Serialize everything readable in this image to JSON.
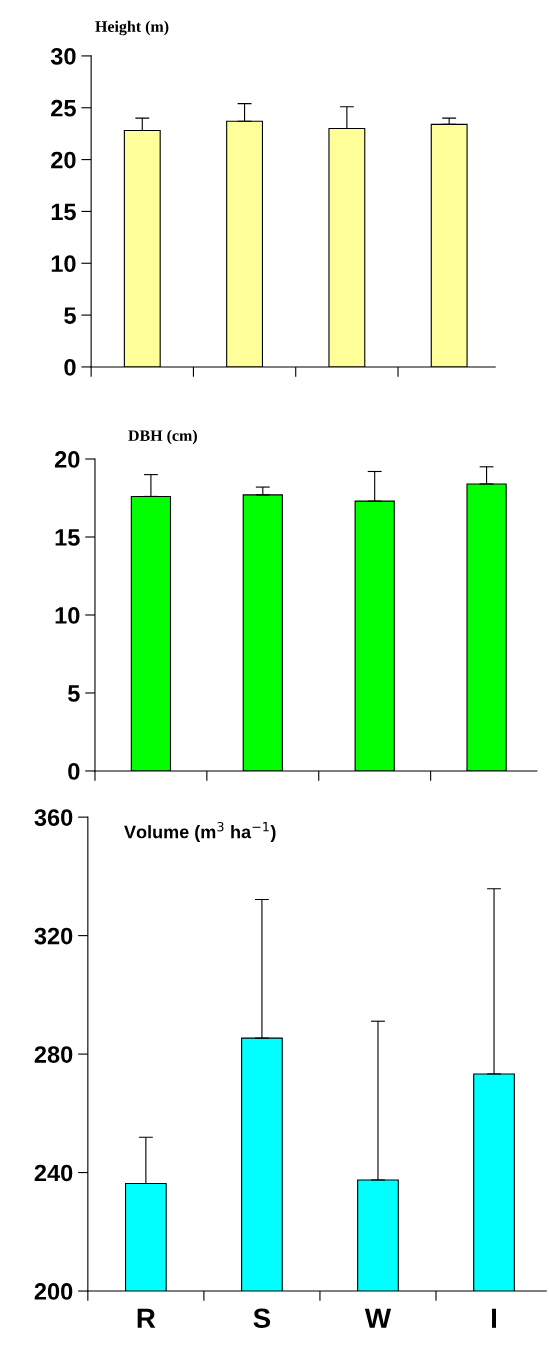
{
  "chart_data": [
    {
      "type": "bar",
      "title": "Height (m)",
      "categories": [
        null,
        null,
        null,
        null
      ],
      "values": [
        22.8,
        23.7,
        23.0,
        23.4
      ],
      "errors": [
        [
          22.8,
          24.0
        ],
        [
          23.7,
          25.4
        ],
        [
          23.0,
          25.1
        ],
        [
          23.4,
          24.0
        ]
      ],
      "color": "#ffff99",
      "ylim": [
        0,
        30
      ],
      "yticks": [
        0,
        5,
        10,
        15,
        20,
        25,
        30
      ],
      "tick_labels": "y"
    },
    {
      "type": "bar",
      "title": "DBH (cm)",
      "categories": [
        null,
        null,
        null,
        null
      ],
      "values": [
        17.6,
        17.7,
        17.3,
        18.4
      ],
      "errors": [
        [
          17.6,
          19.0
        ],
        [
          17.7,
          18.2
        ],
        [
          17.3,
          19.2
        ],
        [
          18.4,
          19.5
        ]
      ],
      "color": "#00ff00",
      "ylim": [
        0,
        20
      ],
      "yticks": [
        0,
        5,
        10,
        15,
        20
      ],
      "tick_labels": "y"
    },
    {
      "type": "bar",
      "title": "Volume (m$^{3}$ ha$^{−1}$)",
      "categories": [
        "R",
        "S",
        "W",
        "I"
      ],
      "values": [
        236.3,
        285.4,
        237.5,
        273.3
      ],
      "errors": [
        [
          236.3,
          251.9
        ],
        [
          285.4,
          332.2
        ],
        [
          237.5,
          291.1
        ],
        [
          273.3,
          335.8
        ]
      ],
      "color": "#00ffff",
      "ylim": [
        200,
        360
      ],
      "yticks": [
        200,
        240,
        280,
        320,
        360
      ]
    }
  ]
}
